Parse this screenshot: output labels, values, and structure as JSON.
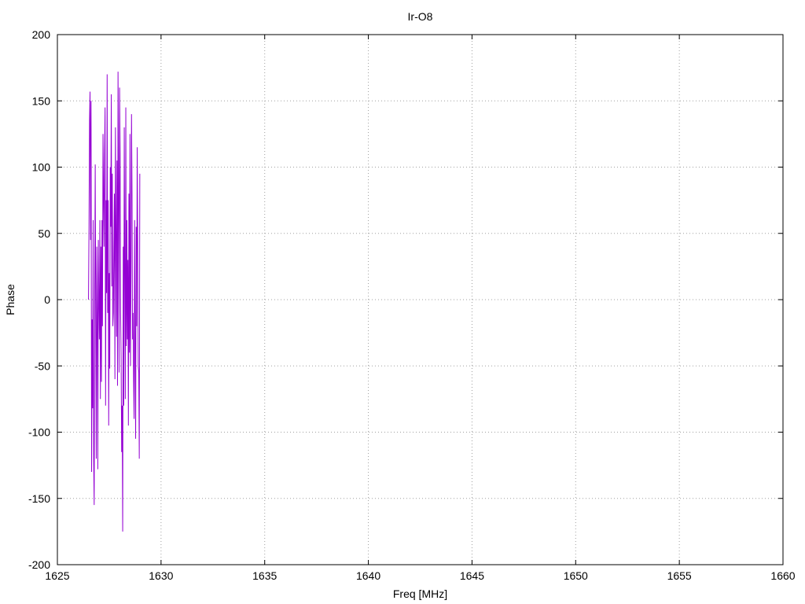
{
  "chart_data": {
    "type": "line",
    "title": "Ir-O8",
    "xlabel": "Freq [MHz]",
    "ylabel": "Phase",
    "xlim": [
      1625,
      1660
    ],
    "ylim": [
      -200,
      200
    ],
    "xticks": [
      1625,
      1630,
      1635,
      1640,
      1645,
      1650,
      1655,
      1660
    ],
    "yticks": [
      -200,
      -150,
      -100,
      -50,
      0,
      50,
      100,
      150,
      200
    ],
    "grid": true,
    "series_color": "#9400d3",
    "series": [
      {
        "x_start": 1626.5,
        "x_step": 0.025,
        "values": [
          0,
          55,
          135,
          157,
          45,
          150,
          -130,
          -15,
          -82,
          60,
          -120,
          -155,
          5,
          102,
          -20,
          -120,
          40,
          -10,
          -128,
          45,
          0,
          -30,
          60,
          -75,
          40,
          -62,
          60,
          -20,
          125,
          80,
          40,
          110,
          145,
          -80,
          75,
          5,
          170,
          -10,
          75,
          -95,
          20,
          -52,
          100,
          55,
          155,
          10,
          95,
          -20,
          -10,
          40,
          80,
          -60,
          130,
          55,
          -28,
          105,
          -65,
          172,
          80,
          -55,
          160,
          110,
          -10,
          -45,
          -115,
          -80,
          -175,
          40,
          -80,
          130,
          20,
          -75,
          145,
          -35,
          60,
          -30,
          30,
          -95,
          80,
          -40,
          125,
          -50,
          20,
          140,
          80,
          -30,
          -10,
          -60,
          -90,
          60,
          -40,
          -105,
          55,
          -20,
          115,
          40,
          -50,
          -55,
          -120,
          95
        ]
      }
    ]
  }
}
